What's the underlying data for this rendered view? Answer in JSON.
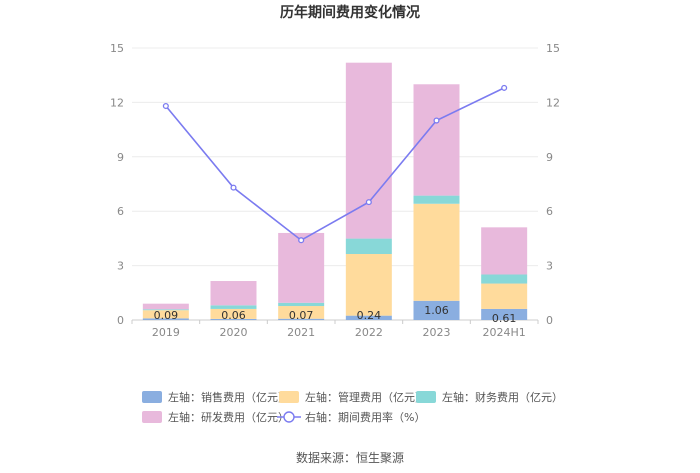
{
  "chart_data": {
    "type": "bar",
    "stacked": true,
    "title": "历年期间费用变化情况",
    "categories": [
      "2019",
      "2020",
      "2021",
      "2022",
      "2023",
      "2024H1"
    ],
    "series": [
      {
        "name": "左轴：销售费用（亿元）",
        "axis": "left",
        "type": "bar",
        "color": "#8aaee0",
        "values": [
          0.09,
          0.06,
          0.07,
          0.24,
          1.06,
          0.61
        ]
      },
      {
        "name": "左轴：管理费用（亿元）",
        "axis": "left",
        "type": "bar",
        "color": "#ffdb9c",
        "values": [
          0.45,
          0.55,
          0.7,
          3.4,
          5.35,
          1.4
        ]
      },
      {
        "name": "左轴：财务费用（亿元）",
        "axis": "left",
        "type": "bar",
        "color": "#88d8d8",
        "values": [
          0.05,
          0.2,
          0.18,
          0.85,
          0.45,
          0.5
        ]
      },
      {
        "name": "左轴：研发费用（亿元）",
        "axis": "left",
        "type": "bar",
        "color": "#e8b9dc",
        "values": [
          0.31,
          1.34,
          3.85,
          9.7,
          6.14,
          2.6
        ]
      },
      {
        "name": "右轴：期间费用率（%）",
        "axis": "right",
        "type": "line",
        "color": "#7b7bf0",
        "values": [
          11.8,
          7.3,
          4.4,
          6.5,
          11.0,
          12.8
        ]
      }
    ],
    "yleft": {
      "ylim": [
        0,
        15
      ],
      "ticks": [
        "0",
        "3",
        "6",
        "9",
        "12",
        "15"
      ]
    },
    "yright": {
      "ylim": [
        0,
        15
      ],
      "ticks": [
        "0",
        "3",
        "6",
        "9",
        "12",
        "15"
      ]
    },
    "data_labels": [
      "0.09",
      "0.06",
      "0.07",
      "0.24",
      "1.06",
      "0.61"
    ],
    "grid": true,
    "legend_position": "bottom",
    "source": "数据来源：恒生聚源"
  }
}
